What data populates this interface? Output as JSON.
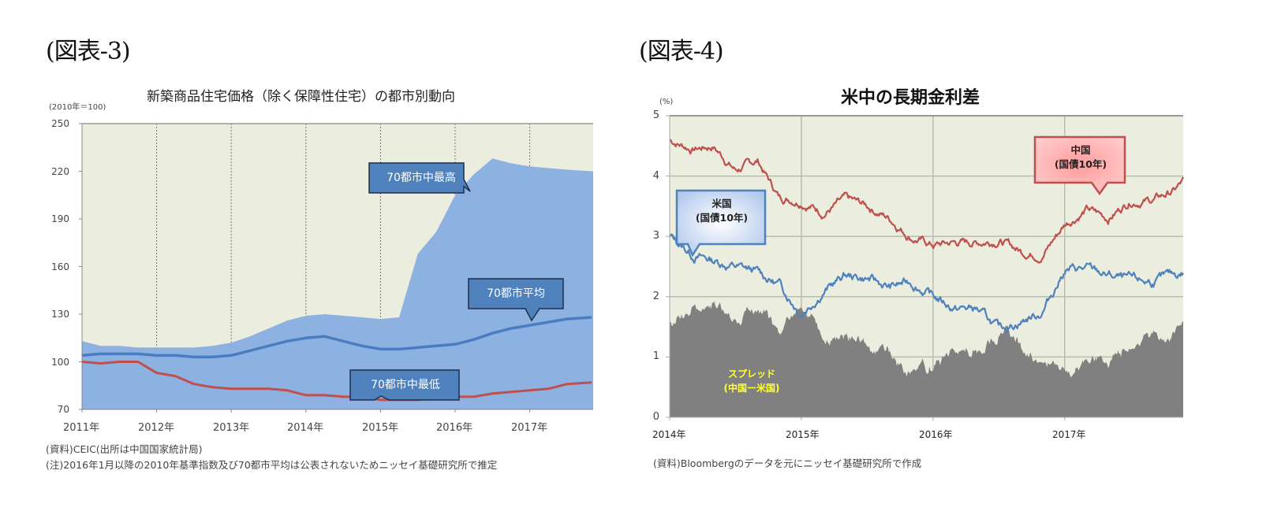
{
  "figures": {
    "left": {
      "label": "(図表-3)",
      "title": "新築商品住宅価格（除く保障性住宅）の都市別動向",
      "unit": "(2010年＝100)",
      "y_ticks": [
        "250",
        "220",
        "190",
        "160",
        "130",
        "100",
        "70"
      ],
      "x_ticks": [
        "2011年",
        "2012年",
        "2013年",
        "2014年",
        "2015年",
        "2016年",
        "2017年"
      ],
      "callouts": {
        "max": "70都市中最高",
        "avg": "70都市平均",
        "min": "70都市中最低"
      },
      "notes": [
        "(資料)CEIC(出所は中国国家統計局)",
        "(注)2016年1月以降の2010年基準指数及び70都市平均は公表されないためニッセイ基礎研究所で推定"
      ]
    },
    "right": {
      "label": "(図表-4)",
      "title": "米中の長期金利差",
      "unit": "(%)",
      "y_ticks": [
        "5",
        "4",
        "3",
        "2",
        "1",
        "0"
      ],
      "x_ticks": [
        "2014年",
        "2015年",
        "2016年",
        "2017年"
      ],
      "callouts": {
        "us_line1": "米国",
        "us_line2": "(国債10年)",
        "cn_line1": "中国",
        "cn_line2": "(国債10年)",
        "spread_line1": "スプレッド",
        "spread_line2": "(中国ー米国)"
      },
      "notes": [
        "(資料)Bloombergのデータを元にニッセイ基礎研究所で作成"
      ]
    }
  },
  "colors": {
    "plot_bg": "#ebeedf",
    "max_area": "#8db1e0",
    "avg_line": "#4a7dbf",
    "min_line": "#c0504d",
    "callout_blue": "#4f81bd",
    "china_line": "#c0504d",
    "us_line": "#4f81bd",
    "spread_area": "#808080",
    "spread_label": "#ffff33",
    "grid": "#b9bcaf"
  },
  "chart_data": [
    {
      "type": "area",
      "title": "新築商品住宅価格（除く保障性住宅）の都市別動向",
      "ylabel": "(2010年＝100)",
      "xlabel": "",
      "ylim": [
        70,
        250
      ],
      "y_ticks": [
        70,
        100,
        130,
        160,
        190,
        220,
        250
      ],
      "x_ticks": [
        "2011年",
        "2012年",
        "2013年",
        "2014年",
        "2015年",
        "2016年",
        "2017年"
      ],
      "grid": "vertical dashed at year boundaries",
      "x": [
        2011.0,
        2011.25,
        2011.5,
        2011.75,
        2012.0,
        2012.25,
        2012.5,
        2012.75,
        2013.0,
        2013.25,
        2013.5,
        2013.75,
        2014.0,
        2014.25,
        2014.5,
        2014.75,
        2015.0,
        2015.25,
        2015.5,
        2015.75,
        2016.0,
        2016.25,
        2016.5,
        2016.75,
        2017.0,
        2017.25,
        2017.5,
        2017.83
      ],
      "series": [
        {
          "name": "70都市中最高",
          "style": "filled area",
          "values": [
            113,
            110,
            110,
            109,
            109,
            109,
            109,
            110,
            112,
            116,
            121,
            126,
            129,
            130,
            129,
            128,
            127,
            128,
            168,
            182,
            205,
            218,
            228,
            225,
            223,
            222,
            221,
            220
          ]
        },
        {
          "name": "70都市平均",
          "style": "line",
          "values": [
            104,
            105,
            105,
            105,
            104,
            104,
            103,
            103,
            104,
            107,
            110,
            113,
            115,
            116,
            113,
            110,
            108,
            108,
            109,
            110,
            111,
            114,
            118,
            121,
            123,
            125,
            127,
            128
          ]
        },
        {
          "name": "70都市中最低",
          "style": "line",
          "values": [
            100,
            99,
            100,
            100,
            93,
            91,
            86,
            84,
            83,
            83,
            83,
            82,
            79,
            79,
            78,
            78,
            76,
            76,
            76,
            77,
            78,
            78,
            80,
            81,
            82,
            83,
            86,
            87
          ]
        }
      ]
    },
    {
      "type": "line",
      "title": "米中の長期金利差",
      "ylabel": "(%)",
      "xlabel": "",
      "ylim": [
        0,
        5
      ],
      "y_ticks": [
        0,
        1,
        2,
        3,
        4,
        5
      ],
      "x_ticks": [
        "2014年",
        "2015年",
        "2016年",
        "2017年"
      ],
      "grid": "horizontal and vertical solid",
      "x": [
        2014.0,
        2014.17,
        2014.33,
        2014.5,
        2014.67,
        2014.83,
        2015.0,
        2015.17,
        2015.33,
        2015.5,
        2015.67,
        2015.83,
        2016.0,
        2016.17,
        2016.33,
        2016.5,
        2016.67,
        2016.83,
        2017.0,
        2017.17,
        2017.33,
        2017.5,
        2017.67,
        2017.83,
        2017.9
      ],
      "series": [
        {
          "name": "中国(国債10年)",
          "values": [
            4.6,
            4.45,
            4.5,
            4.1,
            4.25,
            3.65,
            3.6,
            3.4,
            3.6,
            3.5,
            3.3,
            3.0,
            2.85,
            2.9,
            2.9,
            2.95,
            2.75,
            2.7,
            3.2,
            3.45,
            3.3,
            3.6,
            3.6,
            3.75,
            3.9
          ]
        },
        {
          "name": "米国(国債10年)",
          "values": [
            3.0,
            2.7,
            2.6,
            2.5,
            2.4,
            2.2,
            1.75,
            2.1,
            2.35,
            2.3,
            2.15,
            2.25,
            2.0,
            1.8,
            1.8,
            1.45,
            1.6,
            1.75,
            2.45,
            2.45,
            2.35,
            2.25,
            2.25,
            2.35,
            2.4
          ]
        },
        {
          "name": "スプレッド(中国ー米国)",
          "style": "filled area",
          "values": [
            1.6,
            1.75,
            1.9,
            1.6,
            1.85,
            1.45,
            1.85,
            1.3,
            1.25,
            1.2,
            1.15,
            0.75,
            0.85,
            1.1,
            1.1,
            1.5,
            1.15,
            0.95,
            0.75,
            1.0,
            0.95,
            1.35,
            1.35,
            1.4,
            1.5
          ]
        }
      ]
    }
  ]
}
